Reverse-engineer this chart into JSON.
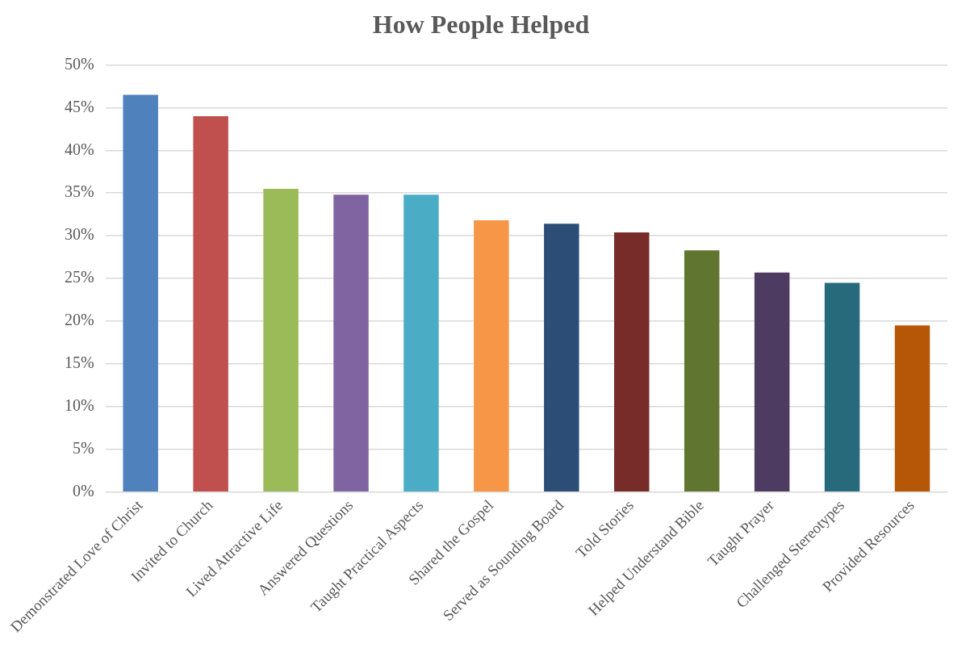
{
  "chart_data": {
    "type": "bar",
    "title": "How People Helped",
    "categories": [
      "Demonstrated Love of Christ",
      "Invited to Church",
      "Lived Attractive Life",
      "Answered Questions",
      "Taught Practical Aspects",
      "Shared the Gospel",
      "Served as Sounding Board",
      "Told Stories",
      "Helped Understand Bible",
      "Taught Prayer",
      "Challenged Stereotypes",
      "Provided Resources"
    ],
    "values": [
      46.5,
      44.0,
      35.5,
      34.8,
      34.8,
      31.8,
      31.4,
      30.4,
      28.3,
      25.7,
      24.5,
      19.5
    ],
    "colors": [
      "#4f81bd",
      "#c0504d",
      "#9bbb59",
      "#8064a2",
      "#4bacc6",
      "#f79646",
      "#2c4d75",
      "#772c2a",
      "#5f7530",
      "#4d3b62",
      "#276a7c",
      "#b65708"
    ],
    "ylim": [
      0,
      50
    ],
    "yticks": [
      {
        "value": 0,
        "label": "0%"
      },
      {
        "value": 5,
        "label": "5%"
      },
      {
        "value": 10,
        "label": "10%"
      },
      {
        "value": 15,
        "label": "15%"
      },
      {
        "value": 20,
        "label": "20%"
      },
      {
        "value": 25,
        "label": "25%"
      },
      {
        "value": 30,
        "label": "30%"
      },
      {
        "value": 35,
        "label": "35%"
      },
      {
        "value": 40,
        "label": "40%"
      },
      {
        "value": 45,
        "label": "45%"
      },
      {
        "value": 50,
        "label": "50%"
      }
    ],
    "grid": "y",
    "legend": false
  }
}
